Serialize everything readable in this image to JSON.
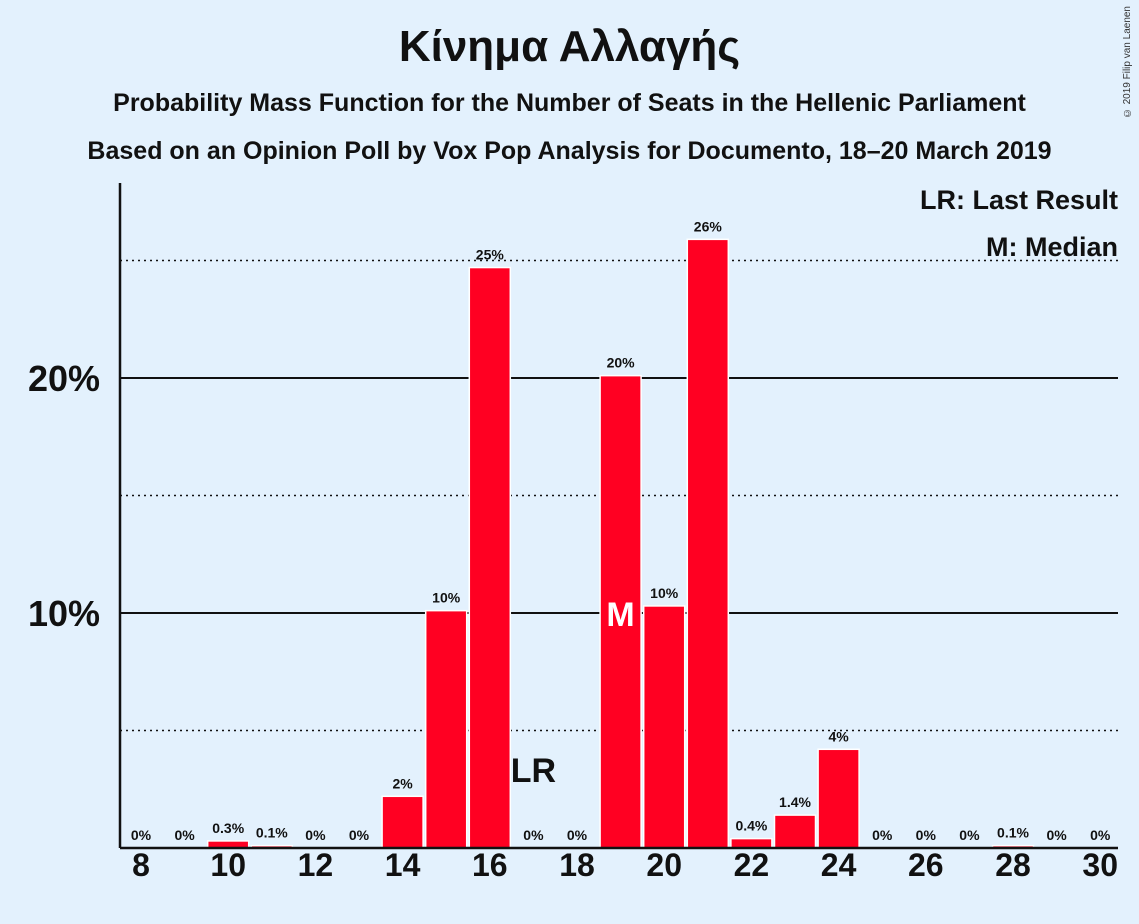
{
  "title": "Κίνημα Αλλαγής",
  "subtitle_1": "Probability Mass Function for the Number of Seats in the Hellenic Parliament",
  "subtitle_2": "Based on an Opinion Poll by Vox Pop Analysis for Documento, 18–20 March 2019",
  "copyright": "© 2019 Filip van Laenen",
  "colors": {
    "bar": "#ff0022",
    "background": "#e3f1fd",
    "text": "#111111"
  },
  "legend": {
    "lr": "LR: Last Result",
    "median": "M: Median"
  },
  "chart_data": {
    "type": "bar",
    "x": [
      8,
      9,
      10,
      11,
      12,
      13,
      14,
      15,
      16,
      17,
      18,
      19,
      20,
      21,
      22,
      23,
      24,
      25,
      26,
      27,
      28,
      29,
      30
    ],
    "values": [
      0,
      0,
      0.3,
      0.1,
      0,
      0,
      2.2,
      10.1,
      24.7,
      0,
      0,
      20.1,
      10.3,
      25.9,
      0.4,
      1.4,
      4.2,
      0,
      0,
      0,
      0.1,
      0,
      0
    ],
    "data_labels": [
      "0%",
      "0%",
      "0.3%",
      "0.1%",
      "0%",
      "0%",
      "2%",
      "10%",
      "25%",
      "0%",
      "0%",
      "20%",
      "10%",
      "26%",
      "0.4%",
      "1.4%",
      "4%",
      "0%",
      "0%",
      "0%",
      "0.1%",
      "0%",
      "0%"
    ],
    "x_tick_labels": [
      "8",
      "10",
      "12",
      "14",
      "16",
      "18",
      "20",
      "22",
      "24",
      "26",
      "28",
      "30"
    ],
    "y_tick_labels": [
      "10%",
      "20%"
    ],
    "y_ticks_solid": [
      10,
      20
    ],
    "y_ticks_dotted": [
      5,
      15,
      25
    ],
    "ylim": [
      0,
      28.3
    ],
    "last_result": {
      "seat": 17,
      "label": "LR"
    },
    "median": {
      "seat": 19,
      "label": "M"
    }
  }
}
